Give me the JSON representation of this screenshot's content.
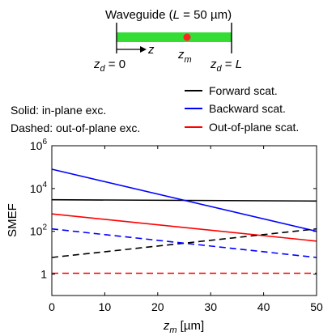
{
  "schematic": {
    "title_prefix": "Waveguide (",
    "title_var": "L",
    "title_suffix": " = 50 µm)",
    "z_axis_label": "z",
    "zm_main": "z",
    "zm_sub": "m",
    "left_end_main": "z",
    "left_end_sub": "d",
    "left_end_eq": " = 0",
    "right_end_main": "z",
    "right_end_sub": "d",
    "right_end_eq": " = ",
    "right_end_var": "L",
    "waveguide_color": "#33dd33",
    "source_color": "#ff2222"
  },
  "notes": {
    "solid": "Solid: in-plane exc.",
    "dashed": "Dashed: out-of-plane exc."
  },
  "legend": [
    {
      "label": "Forward scat.",
      "color": "#000000"
    },
    {
      "label": "Backward scat.",
      "color": "#0000ff"
    },
    {
      "label": "Out-of-plane scat.",
      "color": "#ff0000"
    }
  ],
  "chart_data": {
    "type": "line",
    "xlabel_main": "z",
    "xlabel_sub": "m",
    "xlabel_unit": " [µm]",
    "ylabel": "SMEF",
    "xlim": [
      0,
      50
    ],
    "ylim": [
      0.1,
      1000000
    ],
    "yscale": "log",
    "grid": false,
    "xticks": [
      0,
      10,
      20,
      30,
      40,
      50
    ],
    "xtick_labels": [
      "0",
      "10",
      "20",
      "30",
      "40",
      "50"
    ],
    "yticks": [
      1,
      100,
      10000,
      1000000
    ],
    "ytick_labels": [
      {
        "base": "1",
        "exp": ""
      },
      {
        "base": "10",
        "exp": "2"
      },
      {
        "base": "10",
        "exp": "4"
      },
      {
        "base": "10",
        "exp": "6"
      }
    ],
    "series": [
      {
        "color": "#000000",
        "dash": false,
        "x": [
          0,
          50
        ],
        "y": [
          3000,
          2600
        ]
      },
      {
        "color": "#0000ff",
        "dash": false,
        "x": [
          0,
          50
        ],
        "y": [
          80000,
          100
        ]
      },
      {
        "color": "#ff0000",
        "dash": false,
        "x": [
          0,
          50
        ],
        "y": [
          650,
          35
        ]
      },
      {
        "color": "#000000",
        "dash": true,
        "x": [
          0,
          50
        ],
        "y": [
          6,
          130
        ]
      },
      {
        "color": "#0000ff",
        "dash": true,
        "x": [
          0,
          50
        ],
        "y": [
          130,
          6
        ]
      },
      {
        "color": "#ff0000",
        "dash": true,
        "x": [
          0,
          50
        ],
        "y": [
          1.1,
          1.1
        ]
      }
    ]
  }
}
